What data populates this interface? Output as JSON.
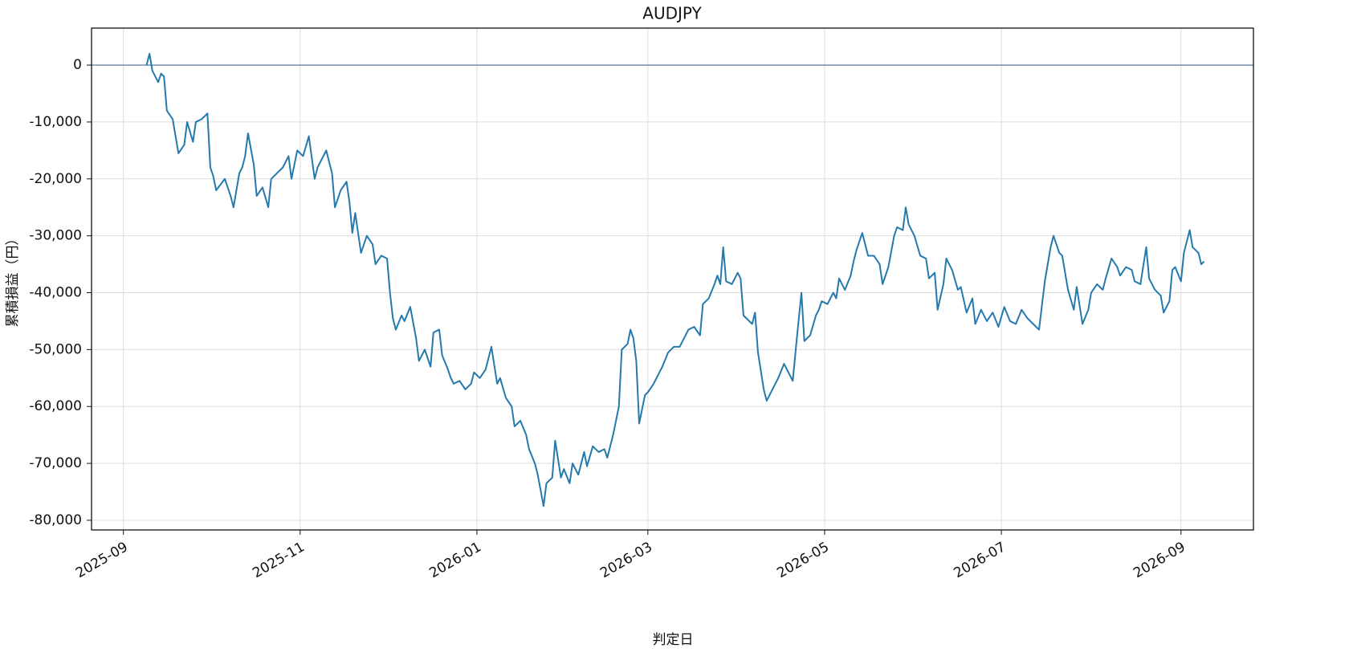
{
  "chart_data": {
    "type": "line",
    "title": "AUDJPY",
    "xlabel": "判定日",
    "ylabel": "累積損益（円）",
    "color": "#2479ad",
    "grid": true,
    "hline": 0,
    "hline_color": "#4a6b8c",
    "xlim": [
      "2025-08-21",
      "2026-09-26"
    ],
    "xticks": [
      "2025-09",
      "2025-11",
      "2026-01",
      "2026-03",
      "2026-05",
      "2026-07",
      "2026-09"
    ],
    "ylim": [
      -81700,
      6500
    ],
    "yticks": [
      {
        "value": -80000,
        "label": "-80,000"
      },
      {
        "value": -70000,
        "label": "-70,000"
      },
      {
        "value": -60000,
        "label": "-60,000"
      },
      {
        "value": -50000,
        "label": "-50,000"
      },
      {
        "value": -40000,
        "label": "-40,000"
      },
      {
        "value": -30000,
        "label": "-30,000"
      },
      {
        "value": -20000,
        "label": "-20,000"
      },
      {
        "value": -10000,
        "label": "-10,000"
      },
      0
    ],
    "x": [
      "2025-09-09",
      "2025-09-10",
      "2025-09-11",
      "2025-09-13",
      "2025-09-14",
      "2025-09-15",
      "2025-09-16",
      "2025-09-18",
      "2025-09-20",
      "2025-09-22",
      "2025-09-23",
      "2025-09-25",
      "2025-09-26",
      "2025-09-28",
      "2025-09-30",
      "2025-10-01",
      "2025-10-02",
      "2025-10-03",
      "2025-10-06",
      "2025-10-08",
      "2025-10-09",
      "2025-10-11",
      "2025-10-12",
      "2025-10-13",
      "2025-10-14",
      "2025-10-16",
      "2025-10-17",
      "2025-10-19",
      "2025-10-21",
      "2025-10-22",
      "2025-10-24",
      "2025-10-26",
      "2025-10-28",
      "2025-10-29",
      "2025-10-31",
      "2025-11-02",
      "2025-11-04",
      "2025-11-06",
      "2025-11-07",
      "2025-11-09",
      "2025-11-10",
      "2025-11-12",
      "2025-11-13",
      "2025-11-15",
      "2025-11-17",
      "2025-11-18",
      "2025-11-19",
      "2025-11-20",
      "2025-11-22",
      "2025-11-24",
      "2025-11-26",
      "2025-11-27",
      "2025-11-29",
      "2025-12-01",
      "2025-12-02",
      "2025-12-03",
      "2025-12-04",
      "2025-12-06",
      "2025-12-07",
      "2025-12-09",
      "2025-12-11",
      "2025-12-12",
      "2025-12-14",
      "2025-12-16",
      "2025-12-17",
      "2025-12-19",
      "2025-12-20",
      "2025-12-22",
      "2025-12-23",
      "2025-12-24",
      "2025-12-26",
      "2025-12-28",
      "2025-12-30",
      "2025-12-31",
      "2026-01-02",
      "2026-01-04",
      "2026-01-06",
      "2026-01-08",
      "2026-01-09",
      "2026-01-11",
      "2026-01-13",
      "2026-01-14",
      "2026-01-16",
      "2026-01-18",
      "2026-01-19",
      "2026-01-21",
      "2026-01-22",
      "2026-01-24",
      "2026-01-25",
      "2026-01-27",
      "2026-01-28",
      "2026-01-30",
      "2026-01-31",
      "2026-02-02",
      "2026-02-03",
      "2026-02-05",
      "2026-02-07",
      "2026-02-08",
      "2026-02-10",
      "2026-02-12",
      "2026-02-14",
      "2026-02-15",
      "2026-02-17",
      "2026-02-19",
      "2026-02-20",
      "2026-02-22",
      "2026-02-23",
      "2026-02-24",
      "2026-02-25",
      "2026-02-26",
      "2026-02-28",
      "2026-03-01",
      "2026-03-03",
      "2026-03-05",
      "2026-03-06",
      "2026-03-08",
      "2026-03-10",
      "2026-03-12",
      "2026-03-15",
      "2026-03-17",
      "2026-03-19",
      "2026-03-20",
      "2026-03-22",
      "2026-03-24",
      "2026-03-25",
      "2026-03-26",
      "2026-03-27",
      "2026-03-28",
      "2026-03-30",
      "2026-04-01",
      "2026-04-02",
      "2026-04-03",
      "2026-04-06",
      "2026-04-07",
      "2026-04-08",
      "2026-04-10",
      "2026-04-11",
      "2026-04-13",
      "2026-04-15",
      "2026-04-17",
      "2026-04-18",
      "2026-04-20",
      "2026-04-22",
      "2026-04-23",
      "2026-04-24",
      "2026-04-26",
      "2026-04-28",
      "2026-04-29",
      "2026-04-30",
      "2026-05-02",
      "2026-05-04",
      "2026-05-05",
      "2026-05-06",
      "2026-05-08",
      "2026-05-10",
      "2026-05-11",
      "2026-05-12",
      "2026-05-14",
      "2026-05-16",
      "2026-05-18",
      "2026-05-20",
      "2026-05-21",
      "2026-05-23",
      "2026-05-25",
      "2026-05-26",
      "2026-05-28",
      "2026-05-29",
      "2026-05-30",
      "2026-06-01",
      "2026-06-03",
      "2026-06-05",
      "2026-06-06",
      "2026-06-08",
      "2026-06-09",
      "2026-06-11",
      "2026-06-12",
      "2026-06-14",
      "2026-06-16",
      "2026-06-17",
      "2026-06-19",
      "2026-06-21",
      "2026-06-22",
      "2026-06-24",
      "2026-06-26",
      "2026-06-28",
      "2026-06-30",
      "2026-07-02",
      "2026-07-04",
      "2026-07-06",
      "2026-07-08",
      "2026-07-10",
      "2026-07-12",
      "2026-07-14",
      "2026-07-16",
      "2026-07-18",
      "2026-07-19",
      "2026-07-21",
      "2026-07-22",
      "2026-07-24",
      "2026-07-26",
      "2026-07-27",
      "2026-07-29",
      "2026-07-31",
      "2026-08-01",
      "2026-08-03",
      "2026-08-05",
      "2026-08-06",
      "2026-08-08",
      "2026-08-10",
      "2026-08-11",
      "2026-08-13",
      "2026-08-15",
      "2026-08-16",
      "2026-08-18",
      "2026-08-20",
      "2026-08-21",
      "2026-08-23",
      "2026-08-25",
      "2026-08-26",
      "2026-08-28",
      "2026-08-29",
      "2026-08-30",
      "2026-09-01",
      "2026-09-02",
      "2026-09-04",
      "2026-09-05",
      "2026-09-07",
      "2026-09-08",
      "2026-09-09"
    ],
    "values": [
      0,
      2000,
      -1000,
      -3000,
      -1500,
      -2000,
      -8000,
      -9500,
      -15500,
      -14000,
      -10000,
      -13500,
      -10000,
      -9500,
      -8500,
      -18000,
      -19500,
      -22000,
      -20000,
      -23000,
      -25000,
      -19000,
      -18000,
      -16000,
      -12000,
      -17500,
      -23000,
      -21500,
      -25000,
      -20000,
      -19000,
      -18000,
      -16000,
      -20000,
      -15000,
      -16000,
      -12500,
      -20000,
      -18000,
      -16000,
      -15000,
      -19000,
      -25000,
      -22000,
      -20500,
      -24000,
      -29500,
      -26000,
      -33000,
      -30000,
      -31500,
      -35000,
      -33500,
      -34000,
      -40000,
      -44500,
      -46500,
      -44000,
      -45000,
      -42500,
      -48000,
      -52000,
      -50000,
      -53000,
      -47000,
      -46500,
      -51000,
      -53500,
      -55000,
      -56000,
      -55500,
      -57000,
      -56000,
      -54000,
      -55000,
      -53500,
      -49500,
      -56000,
      -55000,
      -58500,
      -60000,
      -63500,
      -62500,
      -65000,
      -67500,
      -70000,
      -72000,
      -77500,
      -73500,
      -72500,
      -66000,
      -72500,
      -71000,
      -73500,
      -70000,
      -72000,
      -68000,
      -70500,
      -67000,
      -68000,
      -67500,
      -69000,
      -65000,
      -60000,
      -50000,
      -49000,
      -46500,
      -48000,
      -52000,
      -63000,
      -58000,
      -57500,
      -56000,
      -54000,
      -53000,
      -50500,
      -49500,
      -49500,
      -46500,
      -46000,
      -47500,
      -42000,
      -41000,
      -38500,
      -37000,
      -38500,
      -32000,
      -38000,
      -38500,
      -36500,
      -37500,
      -44000,
      -45500,
      -43500,
      -50500,
      -57000,
      -59000,
      -57000,
      -55000,
      -52500,
      -53500,
      -55500,
      -45000,
      -40000,
      -48500,
      -47500,
      -44000,
      -43000,
      -41500,
      -42000,
      -40000,
      -41000,
      -37500,
      -39500,
      -37000,
      -34500,
      -32500,
      -29500,
      -33500,
      -33500,
      -35000,
      -38500,
      -35500,
      -30000,
      -28500,
      -29000,
      -25000,
      -28000,
      -30000,
      -33500,
      -34000,
      -37500,
      -36500,
      -43000,
      -38500,
      -34000,
      -36000,
      -39500,
      -39000,
      -43500,
      -41000,
      -45500,
      -43000,
      -45000,
      -43500,
      -46000,
      -42500,
      -45000,
      -45500,
      -43000,
      -44500,
      -45500,
      -46500,
      -38000,
      -32000,
      -30000,
      -33000,
      -33500,
      -39500,
      -43000,
      -39000,
      -45500,
      -43000,
      -40000,
      -38500,
      -39500,
      -37500,
      -34000,
      -35500,
      -37000,
      -35500,
      -36000,
      -38000,
      -38500,
      -32000,
      -37500,
      -39500,
      -40500,
      -43500,
      -41500,
      -36000,
      -35500,
      -38000,
      -33000,
      -29000,
      -32000,
      -33000,
      -35000,
      -34500
    ]
  }
}
